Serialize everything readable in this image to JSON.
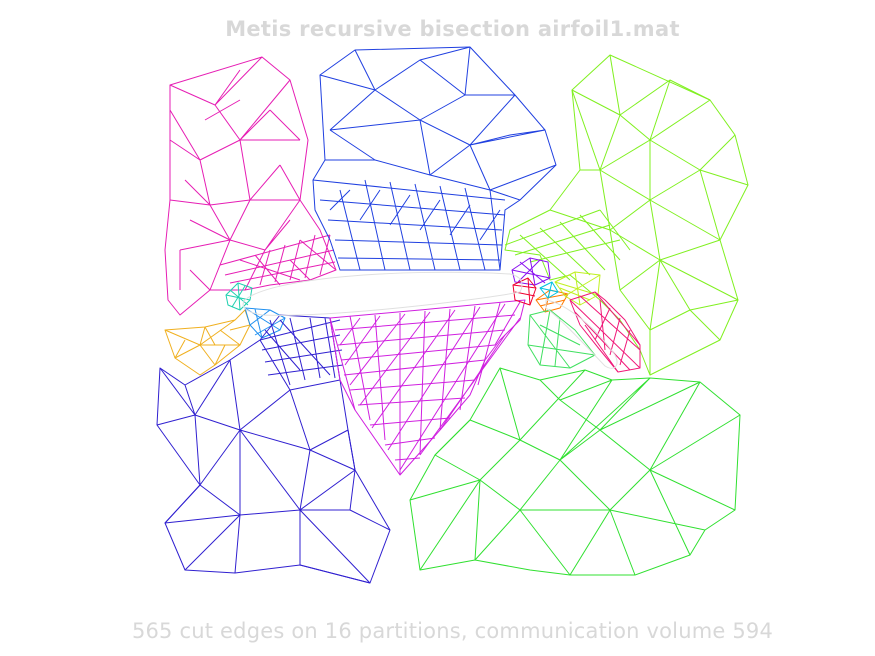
{
  "title": "Metis recursive bisection airfoil1.mat",
  "caption": "565 cut edges on 16 partitions, communication volume 594",
  "partition_colors": [
    "#e61eb4",
    "#2040e0",
    "#80f020",
    "#6020d0",
    "#d020e0",
    "#30e030",
    "#20d0b0",
    "#f0b020",
    "#2090f0",
    "#f00030",
    "#8a10f0",
    "#ff3000",
    "#c0f020",
    "#00c0e0",
    "#ff7a00",
    "#60f040"
  ]
}
